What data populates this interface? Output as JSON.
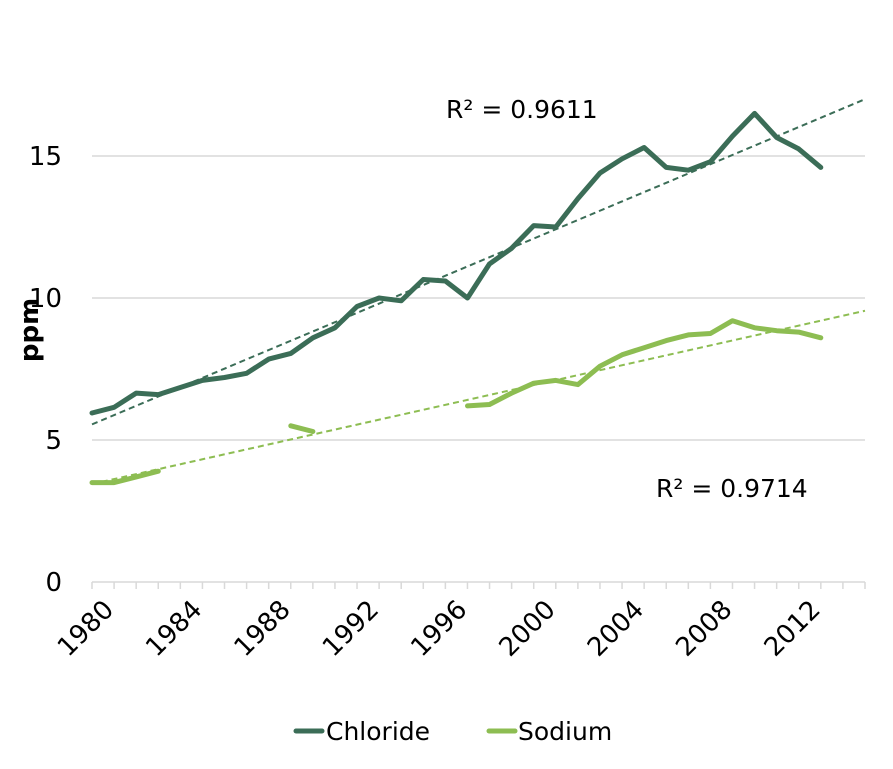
{
  "chart_data": {
    "type": "line",
    "title": "",
    "xlabel": "",
    "ylabel": "ppm",
    "xlim": [
      1980,
      2015
    ],
    "ylim": [
      0,
      17.5
    ],
    "y_ticks": [
      0,
      5,
      10,
      15
    ],
    "x_tick_labels": [
      "1980",
      "1984",
      "1988",
      "1992",
      "1996",
      "2000",
      "2004",
      "2008",
      "2012"
    ],
    "grid": "horizontal",
    "legend_position": "bottom",
    "colors": {
      "chloride": "#3b6d57",
      "sodium": "#8dbd52"
    },
    "series": [
      {
        "name": "Chloride",
        "color": "#3b6d57",
        "x": [
          1980,
          1981,
          1982,
          1983,
          1984,
          1985,
          1986,
          1987,
          1988,
          1989,
          1990,
          1991,
          1992,
          1993,
          1994,
          1995,
          1996,
          1997,
          1998,
          1999,
          2000,
          2001,
          2002,
          2003,
          2004,
          2005,
          2006,
          2007,
          2008,
          2009,
          2010,
          2011,
          2012,
          2013
        ],
        "y": [
          5.95,
          6.15,
          6.65,
          6.6,
          6.85,
          7.1,
          7.2,
          7.35,
          7.85,
          8.05,
          8.6,
          8.95,
          9.7,
          10.0,
          9.9,
          10.65,
          10.6,
          10.0,
          11.2,
          11.75,
          12.55,
          12.5,
          13.5,
          14.4,
          14.9,
          15.3,
          14.6,
          14.5,
          14.8,
          15.7,
          16.5,
          15.65,
          15.25,
          14.6
        ]
      },
      {
        "name": "Sodium",
        "color": "#8dbd52",
        "x": [
          1980,
          1981,
          1982,
          1983,
          1984,
          1985,
          1986,
          1987,
          1988,
          1989,
          1990,
          1991,
          1992,
          1993,
          1994,
          1995,
          1996,
          1997,
          1998,
          1999,
          2000,
          2001,
          2002,
          2003,
          2004,
          2005,
          2006,
          2007,
          2008,
          2009,
          2010,
          2011,
          2012,
          2013
        ],
        "y": [
          3.5,
          3.5,
          3.7,
          3.9,
          null,
          null,
          null,
          null,
          null,
          5.5,
          5.3,
          null,
          null,
          null,
          null,
          null,
          null,
          6.2,
          6.25,
          6.65,
          7.0,
          7.1,
          6.95,
          7.6,
          8.0,
          8.25,
          8.5,
          8.7,
          8.75,
          9.2,
          8.95,
          8.85,
          8.8,
          8.6
        ]
      }
    ],
    "trendlines": [
      {
        "series": "Chloride",
        "type": "linear",
        "x": [
          1980,
          2015
        ],
        "y": [
          5.55,
          17.0
        ],
        "r2_label": "R² = 0.9611"
      },
      {
        "series": "Sodium",
        "type": "linear",
        "x": [
          1980,
          2015
        ],
        "y": [
          3.45,
          9.55
        ],
        "r2_label": "R² = 0.9714"
      }
    ]
  }
}
